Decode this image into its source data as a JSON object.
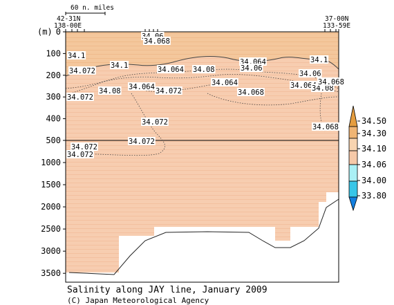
{
  "caption": "Salinity along JAY line, January 2009",
  "credit": "(C) Japan Meteorological Agency",
  "chart_data": {
    "type": "heatmap",
    "title": "Salinity along JAY line, January 2009",
    "scale_label": "60 n. miles",
    "ylabel": "(m)",
    "start_station": {
      "lat": "42-31N",
      "lon": "138-00E"
    },
    "end_station": {
      "lat": "37-00N",
      "lon": "133-59E"
    },
    "y_upper_ticks": [
      "0",
      "100",
      "200",
      "300",
      "400",
      "500"
    ],
    "y_lower_ticks": [
      "1000",
      "1500",
      "2000",
      "2500",
      "3000",
      "3500"
    ],
    "y_upper_range": [
      0,
      500
    ],
    "y_lower_range": [
      500,
      3700
    ],
    "colorbar": {
      "ticks": [
        "34.50",
        "34.30",
        "34.10",
        "34.06",
        "34.00",
        "33.80"
      ],
      "colors": [
        "#e59d3f",
        "#f0b574",
        "#f8d4b0",
        "#f6c9a8",
        "#aaf0f5",
        "#38c6e8",
        "#1480e0"
      ]
    },
    "contour_labels": [
      "34.06",
      "34.068",
      "34.1",
      "34.064",
      "34.064",
      "34.08",
      "34.06",
      "34.1",
      "34.072",
      "34.1",
      "34.064",
      "34.08",
      "34.06",
      "34.064",
      "34.08",
      "34.064",
      "34.072",
      "34.068",
      "34.072",
      "34.072",
      "34.068",
      "34.072",
      "34.072",
      "34.072",
      "34.068"
    ]
  }
}
